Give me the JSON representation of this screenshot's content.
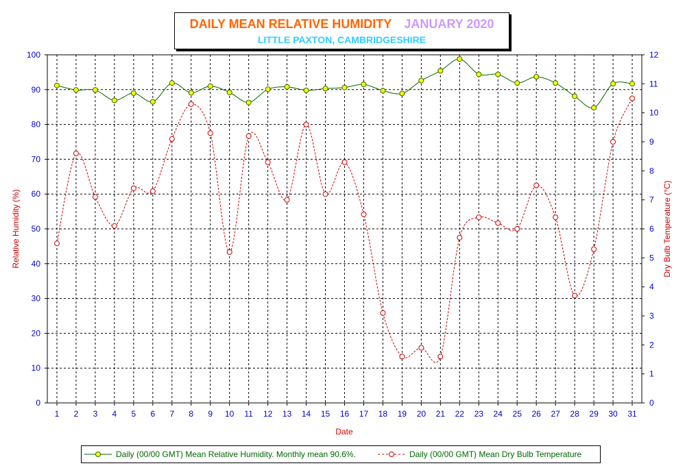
{
  "title": {
    "main": "DAILY MEAN RELATIVE HUMIDITY",
    "period": "JANUARY 2020",
    "location": "LITTLE PAXTON, CAMBRIDGESHIRE"
  },
  "legend": {
    "humidity": "Daily (00/00 GMT) Mean Relative Humidity. Monthly mean 90.6%.",
    "temperature": "Daily (00/00 GMT) Mean Dry Bulb Temperature"
  },
  "chart_data": {
    "type": "line",
    "title": "DAILY MEAN RELATIVE HUMIDITY JANUARY 2020",
    "subtitle": "LITTLE PAXTON, CAMBRIDGESHIRE",
    "xlabel": "Date",
    "ylabel": "Relative Humidity (%)",
    "y2label": "Dry Bulb Temperature (°C)",
    "x": [
      1,
      2,
      3,
      4,
      5,
      6,
      7,
      8,
      9,
      10,
      11,
      12,
      13,
      14,
      15,
      16,
      17,
      18,
      19,
      20,
      21,
      22,
      23,
      24,
      25,
      26,
      27,
      28,
      29,
      30,
      31
    ],
    "ylim": [
      0,
      100
    ],
    "y2lim": [
      0,
      12
    ],
    "yticks": [
      0,
      10,
      20,
      30,
      40,
      50,
      60,
      70,
      80,
      90,
      100
    ],
    "y2ticks": [
      0,
      1,
      2,
      3,
      4,
      5,
      6,
      7,
      8,
      9,
      10,
      11,
      12
    ],
    "grid": true,
    "legend_position": "bottom",
    "series": [
      {
        "name": "Daily (00/00 GMT) Mean Relative Humidity. Monthly mean 90.6%.",
        "axis": "left",
        "style": "solid",
        "line_color": "#006600",
        "marker_color": "#ffff00",
        "values": [
          91.2,
          89.9,
          89.9,
          86.9,
          89.0,
          86.5,
          91.9,
          89.1,
          91.0,
          89.2,
          86.3,
          90.1,
          90.8,
          89.8,
          90.3,
          90.6,
          91.5,
          89.7,
          88.9,
          92.6,
          95.4,
          98.8,
          94.4,
          94.4,
          91.9,
          93.7,
          91.9,
          88.1,
          84.8,
          91.7,
          91.7
        ]
      },
      {
        "name": "Daily (00/00 GMT) Mean Dry Bulb Temperature",
        "axis": "right",
        "style": "dashed",
        "line_color": "#cc0000",
        "marker_color": "#ffffff",
        "values": [
          5.5,
          8.6,
          7.1,
          6.1,
          7.4,
          7.3,
          9.1,
          10.3,
          9.3,
          5.2,
          9.2,
          8.3,
          7.0,
          9.6,
          7.2,
          8.3,
          6.5,
          3.1,
          1.6,
          1.9,
          1.6,
          5.7,
          6.4,
          6.2,
          6.0,
          7.5,
          6.4,
          3.7,
          5.3,
          9.0,
          10.5
        ]
      }
    ]
  }
}
